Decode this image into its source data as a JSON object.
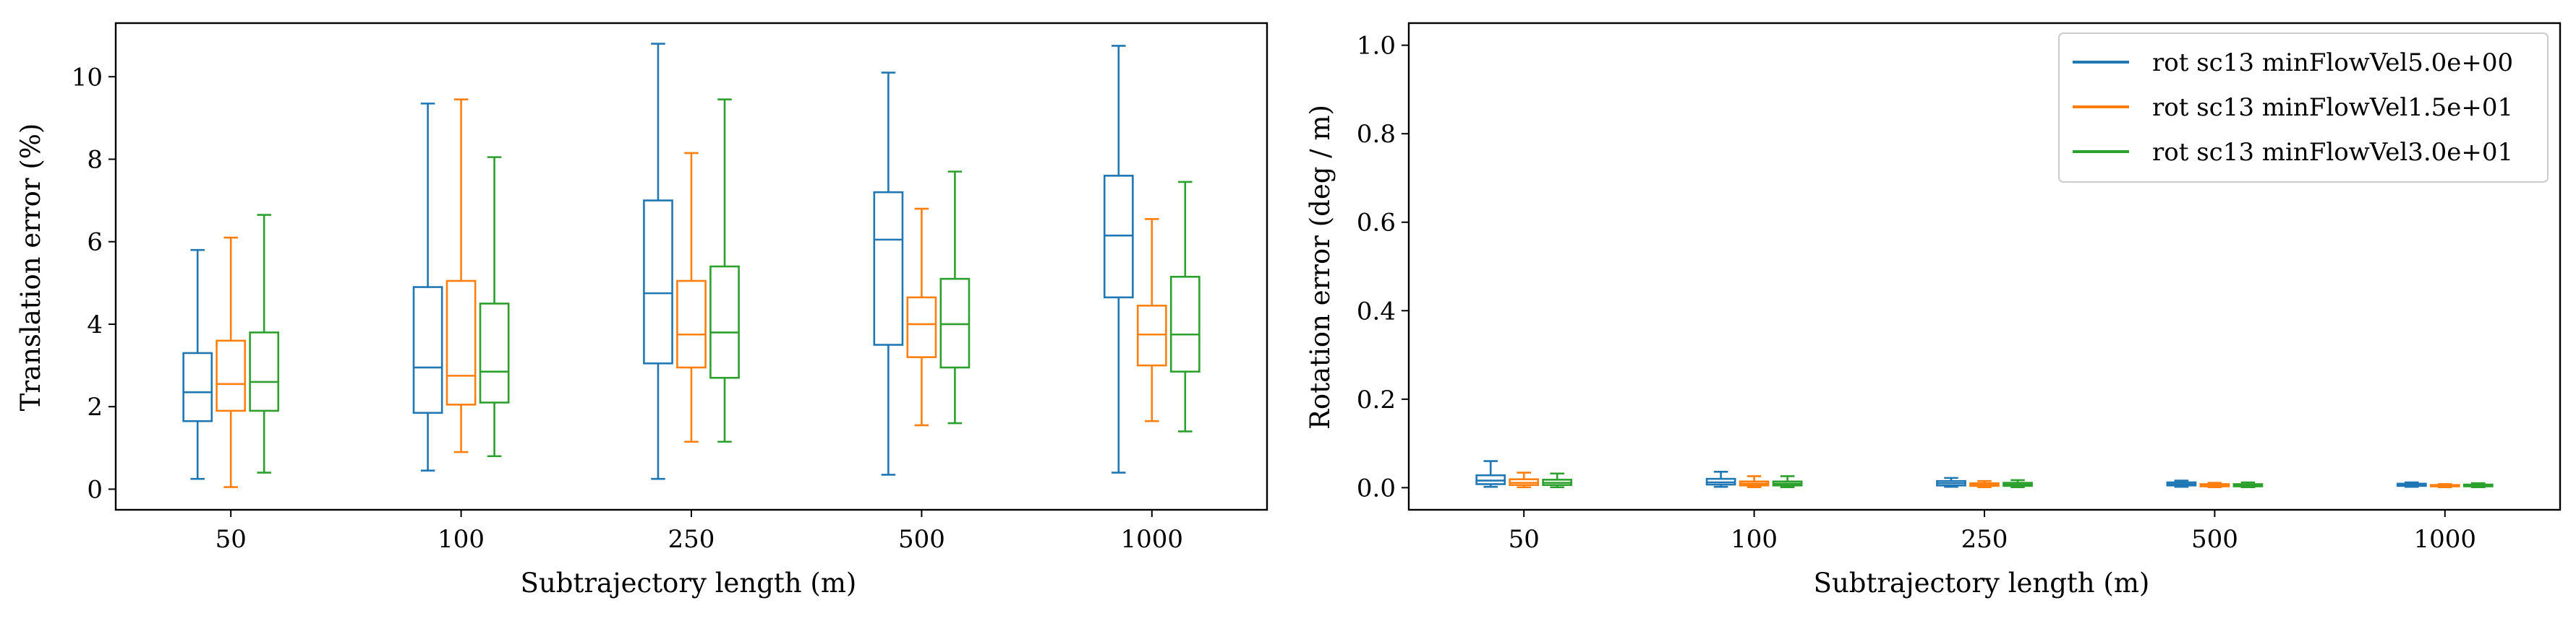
{
  "chart_data": [
    {
      "type": "box",
      "title": "",
      "xlabel": "Subtrajectory length (m)",
      "ylabel": "Translation error (%)",
      "categories": [
        "50",
        "100",
        "250",
        "500",
        "1000"
      ],
      "yticks": [
        0,
        2,
        4,
        6,
        8,
        10
      ],
      "ylim": [
        -0.5,
        11.3
      ],
      "grid": false,
      "series": [
        {
          "color": "#1f77b4",
          "boxes": [
            {
              "whislo": 0.25,
              "q1": 1.65,
              "med": 2.35,
              "q3": 3.3,
              "whishi": 5.8
            },
            {
              "whislo": 0.45,
              "q1": 1.85,
              "med": 2.95,
              "q3": 4.9,
              "whishi": 9.35
            },
            {
              "whislo": 0.25,
              "q1": 3.05,
              "med": 4.75,
              "q3": 7.0,
              "whishi": 10.8
            },
            {
              "whislo": 0.35,
              "q1": 3.5,
              "med": 6.05,
              "q3": 7.2,
              "whishi": 10.1
            },
            {
              "whislo": 0.4,
              "q1": 4.65,
              "med": 6.15,
              "q3": 7.6,
              "whishi": 10.75
            }
          ]
        },
        {
          "color": "#ff7f0e",
          "boxes": [
            {
              "whislo": 0.05,
              "q1": 1.9,
              "med": 2.55,
              "q3": 3.6,
              "whishi": 6.1
            },
            {
              "whislo": 0.9,
              "q1": 2.05,
              "med": 2.75,
              "q3": 5.05,
              "whishi": 9.45
            },
            {
              "whislo": 1.15,
              "q1": 2.95,
              "med": 3.75,
              "q3": 5.05,
              "whishi": 8.15
            },
            {
              "whislo": 1.55,
              "q1": 3.2,
              "med": 4.0,
              "q3": 4.65,
              "whishi": 6.8
            },
            {
              "whislo": 1.65,
              "q1": 3.0,
              "med": 3.75,
              "q3": 4.45,
              "whishi": 6.55
            }
          ]
        },
        {
          "color": "#2ca02c",
          "boxes": [
            {
              "whislo": 0.4,
              "q1": 1.9,
              "med": 2.6,
              "q3": 3.8,
              "whishi": 6.65
            },
            {
              "whislo": 0.8,
              "q1": 2.1,
              "med": 2.85,
              "q3": 4.5,
              "whishi": 8.05
            },
            {
              "whislo": 1.15,
              "q1": 2.7,
              "med": 3.8,
              "q3": 5.4,
              "whishi": 9.45
            },
            {
              "whislo": 1.6,
              "q1": 2.95,
              "med": 4.0,
              "q3": 5.1,
              "whishi": 7.7
            },
            {
              "whislo": 1.4,
              "q1": 2.85,
              "med": 3.75,
              "q3": 5.15,
              "whishi": 7.45
            }
          ]
        }
      ]
    },
    {
      "type": "box",
      "title": "",
      "xlabel": "Subtrajectory length (m)",
      "ylabel": "Rotation error (deg / m)",
      "categories": [
        "50",
        "100",
        "250",
        "500",
        "1000"
      ],
      "yticks": [
        0.0,
        0.2,
        0.4,
        0.6,
        0.8,
        1.0
      ],
      "ytick_labels": [
        "0.0",
        "0.2",
        "0.4",
        "0.6",
        "0.8",
        "1.0"
      ],
      "ylim": [
        -0.05,
        1.05
      ],
      "grid": false,
      "legend_position": "top-right",
      "series": [
        {
          "name": "rot sc13 minFlowVel5.0e+00",
          "color": "#1f77b4",
          "boxes": [
            {
              "whislo": 0.002,
              "q1": 0.008,
              "med": 0.016,
              "q3": 0.028,
              "whishi": 0.06
            },
            {
              "whislo": 0.002,
              "q1": 0.007,
              "med": 0.012,
              "q3": 0.02,
              "whishi": 0.036
            },
            {
              "whislo": 0.002,
              "q1": 0.005,
              "med": 0.01,
              "q3": 0.015,
              "whishi": 0.022
            },
            {
              "whislo": 0.002,
              "q1": 0.005,
              "med": 0.008,
              "q3": 0.012,
              "whishi": 0.016
            },
            {
              "whislo": 0.002,
              "q1": 0.004,
              "med": 0.006,
              "q3": 0.009,
              "whishi": 0.012
            }
          ]
        },
        {
          "name": "rot sc13 minFlowVel1.5e+01",
          "color": "#ff7f0e",
          "boxes": [
            {
              "whislo": 0.001,
              "q1": 0.006,
              "med": 0.011,
              "q3": 0.019,
              "whishi": 0.034
            },
            {
              "whislo": 0.001,
              "q1": 0.005,
              "med": 0.009,
              "q3": 0.014,
              "whishi": 0.026
            },
            {
              "whislo": 0.001,
              "q1": 0.004,
              "med": 0.007,
              "q3": 0.01,
              "whishi": 0.015
            },
            {
              "whislo": 0.001,
              "q1": 0.003,
              "med": 0.005,
              "q3": 0.008,
              "whishi": 0.011
            },
            {
              "whislo": 0.001,
              "q1": 0.003,
              "med": 0.004,
              "q3": 0.006,
              "whishi": 0.008
            }
          ]
        },
        {
          "name": "rot sc13 minFlowVel3.0e+01",
          "color": "#2ca02c",
          "boxes": [
            {
              "whislo": 0.001,
              "q1": 0.006,
              "med": 0.011,
              "q3": 0.018,
              "whishi": 0.032
            },
            {
              "whislo": 0.001,
              "q1": 0.005,
              "med": 0.009,
              "q3": 0.014,
              "whishi": 0.026
            },
            {
              "whislo": 0.001,
              "q1": 0.004,
              "med": 0.007,
              "q3": 0.011,
              "whishi": 0.017
            },
            {
              "whislo": 0.001,
              "q1": 0.003,
              "med": 0.005,
              "q3": 0.008,
              "whishi": 0.012
            },
            {
              "whislo": 0.001,
              "q1": 0.003,
              "med": 0.005,
              "q3": 0.007,
              "whishi": 0.01
            }
          ]
        }
      ]
    }
  ]
}
